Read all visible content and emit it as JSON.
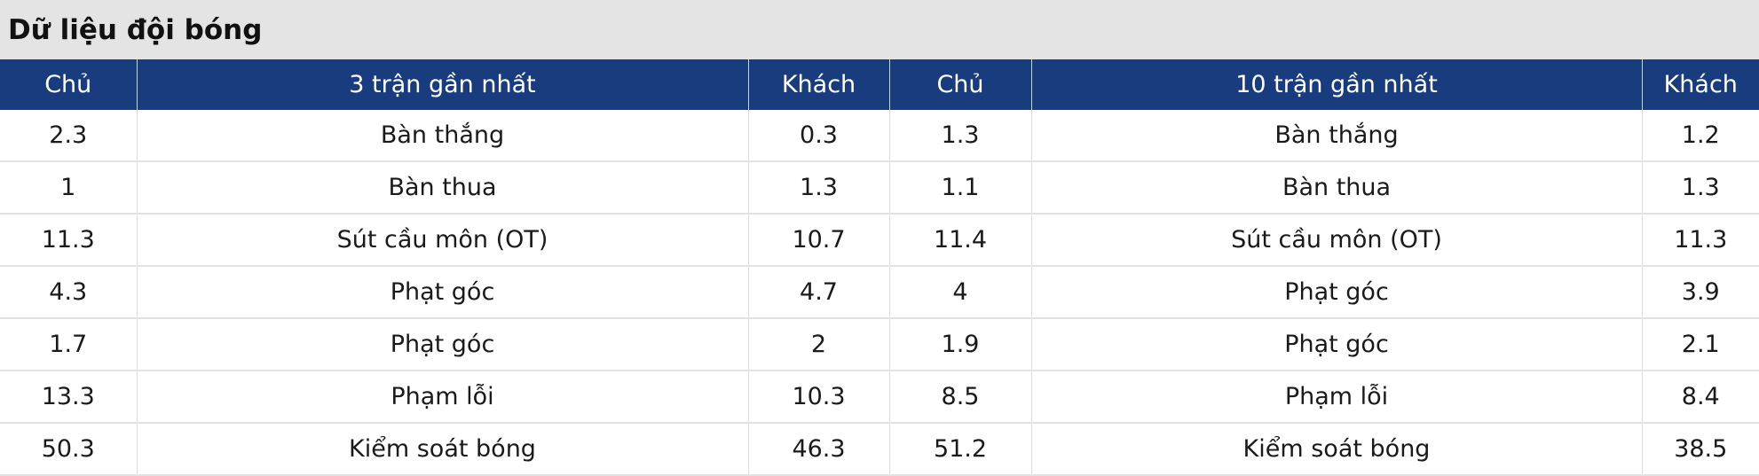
{
  "header": {
    "title": "Dữ liệu đội bóng"
  },
  "table": {
    "headers": [
      "Chủ",
      "3 trận gần nhất",
      "Khách",
      "Chủ",
      "10 trận gần nhất",
      "Khách"
    ],
    "rows": [
      [
        "2.3",
        "Bàn thắng",
        "0.3",
        "1.3",
        "Bàn thắng",
        "1.2"
      ],
      [
        "1",
        "Bàn thua",
        "1.3",
        "1.1",
        "Bàn thua",
        "1.3"
      ],
      [
        "11.3",
        "Sút cầu môn (OT)",
        "10.7",
        "11.4",
        "Sút cầu môn (OT)",
        "11.3"
      ],
      [
        "4.3",
        "Phạt góc",
        "4.7",
        "4",
        "Phạt góc",
        "3.9"
      ],
      [
        "1.7",
        "Phạt góc",
        "2",
        "1.9",
        "Phạt góc",
        "2.1"
      ],
      [
        "13.3",
        "Phạm lỗi",
        "10.3",
        "8.5",
        "Phạm lỗi",
        "8.4"
      ],
      [
        "50.3",
        "Kiểm soát bóng",
        "46.3",
        "51.2",
        "Kiểm soát bóng",
        "38.5"
      ]
    ]
  }
}
